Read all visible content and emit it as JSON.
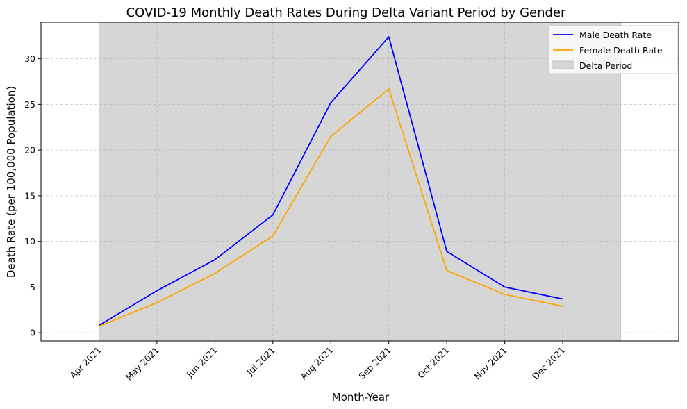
{
  "chart_data": {
    "type": "line",
    "title": "COVID-19 Monthly Death Rates During Delta Variant Period by Gender",
    "xlabel": "Month-Year",
    "ylabel": "Death Rate (per 100,000 Population)",
    "categories": [
      "Apr 2021",
      "May 2021",
      "Jun 2021",
      "Jul 2021",
      "Aug 2021",
      "Sep 2021",
      "Oct 2021",
      "Nov 2021",
      "Dec 2021"
    ],
    "series": [
      {
        "name": "Male Death Rate",
        "color": "#0000ff",
        "values": [
          0.8,
          4.6,
          8.0,
          12.9,
          25.2,
          32.4,
          8.9,
          5.0,
          3.7
        ]
      },
      {
        "name": "Female Death Rate",
        "color": "#ffa500",
        "values": [
          0.7,
          3.3,
          6.5,
          10.6,
          21.5,
          26.7,
          6.8,
          4.2,
          2.9
        ]
      }
    ],
    "shaded_region": {
      "name": "Delta Period",
      "from": "Apr 2021",
      "to": "Jan 2022",
      "color": "#d6d6d6"
    },
    "yticks": [
      0,
      5,
      10,
      15,
      20,
      25,
      30
    ],
    "ylim": [
      -0.9,
      34.0
    ],
    "xlim": [
      "Mar 2021",
      "Feb 2022"
    ],
    "grid": true,
    "legend_position": "top-right"
  }
}
